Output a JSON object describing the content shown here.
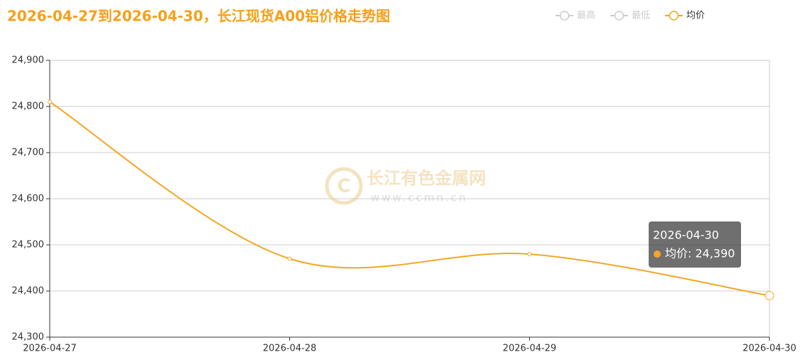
{
  "chart_data": {
    "type": "line",
    "title": "2026-04-27到2026-04-30，长江现货A00铝价格走势图",
    "categories": [
      "2026-04-27",
      "2026-04-28",
      "2026-04-29",
      "2026-04-30"
    ],
    "series": [
      {
        "name": "均价",
        "color": "#f5a623",
        "values": [
          24810,
          24470,
          24480,
          24390
        ]
      }
    ],
    "legend_hidden": [
      {
        "name": "最高",
        "color": "#cccccc"
      },
      {
        "name": "最低",
        "color": "#cccccc"
      }
    ],
    "ylim": [
      24300,
      24900
    ],
    "yticks": [
      {
        "value": 24300,
        "label": "24,300"
      },
      {
        "value": 24400,
        "label": "24,400"
      },
      {
        "value": 24500,
        "label": "24,500"
      },
      {
        "value": 24600,
        "label": "24,600"
      },
      {
        "value": 24700,
        "label": "24,700"
      },
      {
        "value": 24800,
        "label": "24,800"
      },
      {
        "value": 24900,
        "label": "24,900"
      }
    ],
    "grid": true,
    "smooth": true,
    "tooltip": {
      "title": "2026-04-30",
      "text": "均价: 24,390"
    },
    "watermark": {
      "name": "长江有色金属网",
      "url": "www.ccmn.cn"
    }
  }
}
